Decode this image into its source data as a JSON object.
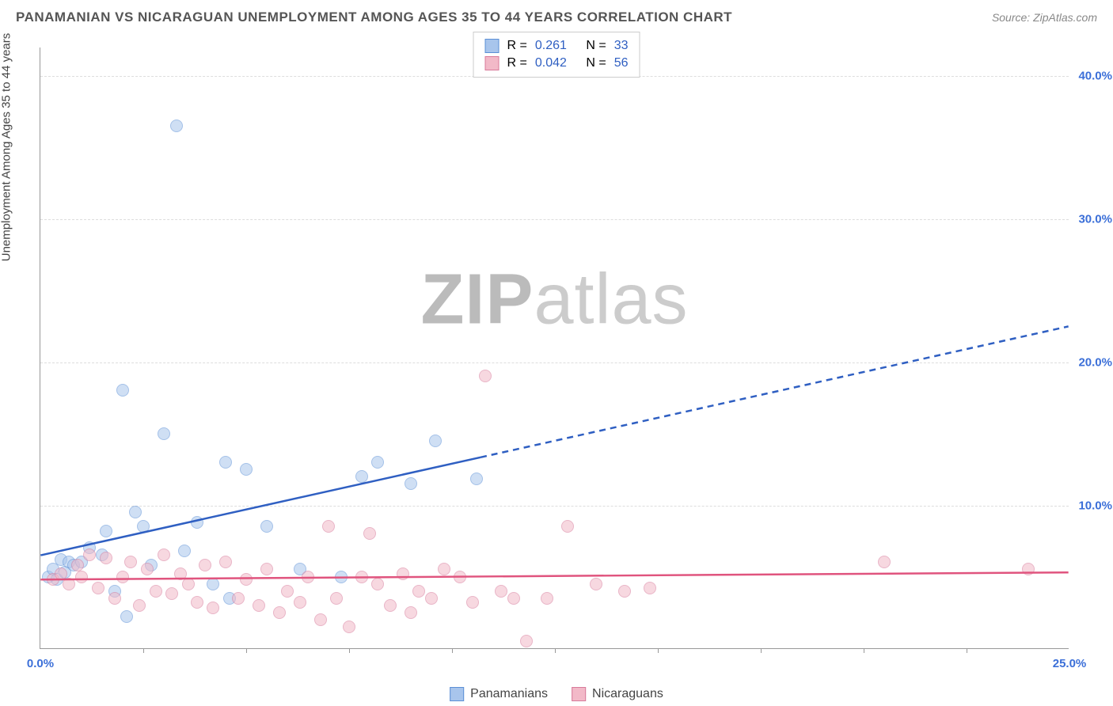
{
  "title": "PANAMANIAN VS NICARAGUAN UNEMPLOYMENT AMONG AGES 35 TO 44 YEARS CORRELATION CHART",
  "source": "Source: ZipAtlas.com",
  "yaxis_label": "Unemployment Among Ages 35 to 44 years",
  "watermark": {
    "bold": "ZIP",
    "light": "atlas"
  },
  "chart": {
    "type": "scatter",
    "xlim": [
      0,
      25
    ],
    "ylim": [
      0,
      42
    ],
    "yticks": [
      {
        "value": 10,
        "label": "10.0%"
      },
      {
        "value": 20,
        "label": "20.0%"
      },
      {
        "value": 30,
        "label": "30.0%"
      },
      {
        "value": 40,
        "label": "40.0%"
      }
    ],
    "xtick_marks": [
      2.5,
      5,
      7.5,
      10,
      12.5,
      15,
      17.5,
      20,
      22.5
    ],
    "xtick_labels": [
      {
        "value": 0,
        "label": "0.0%",
        "color": "#3b6fd8"
      },
      {
        "value": 25,
        "label": "25.0%",
        "color": "#3b6fd8"
      }
    ],
    "ytick_color": "#3b6fd8",
    "grid_color": "#dddddd",
    "background_color": "#ffffff",
    "marker_radius": 8,
    "marker_opacity": 0.55,
    "series": [
      {
        "name": "Panamanians",
        "fill": "#a8c5ec",
        "stroke": "#5b8fd6",
        "points": [
          [
            0.2,
            5.0
          ],
          [
            0.3,
            5.5
          ],
          [
            0.4,
            4.8
          ],
          [
            0.5,
            6.2
          ],
          [
            0.6,
            5.3
          ],
          [
            0.7,
            6.0
          ],
          [
            0.8,
            5.8
          ],
          [
            1.0,
            6.0
          ],
          [
            1.2,
            7.0
          ],
          [
            1.5,
            6.5
          ],
          [
            1.6,
            8.2
          ],
          [
            1.8,
            4.0
          ],
          [
            2.0,
            18.0
          ],
          [
            2.1,
            2.2
          ],
          [
            2.3,
            9.5
          ],
          [
            2.5,
            8.5
          ],
          [
            2.7,
            5.8
          ],
          [
            3.0,
            15.0
          ],
          [
            3.3,
            36.5
          ],
          [
            3.5,
            6.8
          ],
          [
            3.8,
            8.8
          ],
          [
            4.2,
            4.5
          ],
          [
            4.5,
            13.0
          ],
          [
            4.6,
            3.5
          ],
          [
            5.0,
            12.5
          ],
          [
            5.5,
            8.5
          ],
          [
            6.3,
            5.5
          ],
          [
            7.3,
            5.0
          ],
          [
            7.8,
            12.0
          ],
          [
            8.2,
            13.0
          ],
          [
            9.0,
            11.5
          ],
          [
            9.6,
            14.5
          ],
          [
            10.6,
            11.8
          ]
        ],
        "trend": {
          "color": "#2f5fc2",
          "width": 2.5,
          "y_at_x0": 6.5,
          "y_at_xmax": 22.5,
          "solid_until_x": 10.7
        },
        "R": "0.261",
        "N": "33"
      },
      {
        "name": "Nicaguans_display",
        "label": "Nicaraguans",
        "fill": "#f2b9c8",
        "stroke": "#d87a9a",
        "points": [
          [
            0.3,
            4.8
          ],
          [
            0.5,
            5.2
          ],
          [
            0.7,
            4.5
          ],
          [
            0.9,
            5.8
          ],
          [
            1.0,
            5.0
          ],
          [
            1.2,
            6.5
          ],
          [
            1.4,
            4.2
          ],
          [
            1.6,
            6.3
          ],
          [
            1.8,
            3.5
          ],
          [
            2.0,
            5.0
          ],
          [
            2.2,
            6.0
          ],
          [
            2.4,
            3.0
          ],
          [
            2.6,
            5.5
          ],
          [
            2.8,
            4.0
          ],
          [
            3.0,
            6.5
          ],
          [
            3.2,
            3.8
          ],
          [
            3.4,
            5.2
          ],
          [
            3.6,
            4.5
          ],
          [
            3.8,
            3.2
          ],
          [
            4.0,
            5.8
          ],
          [
            4.2,
            2.8
          ],
          [
            4.5,
            6.0
          ],
          [
            4.8,
            3.5
          ],
          [
            5.0,
            4.8
          ],
          [
            5.3,
            3.0
          ],
          [
            5.5,
            5.5
          ],
          [
            5.8,
            2.5
          ],
          [
            6.0,
            4.0
          ],
          [
            6.3,
            3.2
          ],
          [
            6.5,
            5.0
          ],
          [
            6.8,
            2.0
          ],
          [
            7.0,
            8.5
          ],
          [
            7.2,
            3.5
          ],
          [
            7.5,
            1.5
          ],
          [
            7.8,
            5.0
          ],
          [
            8.0,
            8.0
          ],
          [
            8.2,
            4.5
          ],
          [
            8.5,
            3.0
          ],
          [
            8.8,
            5.2
          ],
          [
            9.0,
            2.5
          ],
          [
            9.2,
            4.0
          ],
          [
            9.5,
            3.5
          ],
          [
            9.8,
            5.5
          ],
          [
            10.2,
            5.0
          ],
          [
            10.5,
            3.2
          ],
          [
            10.8,
            19.0
          ],
          [
            11.2,
            4.0
          ],
          [
            11.5,
            3.5
          ],
          [
            11.8,
            0.5
          ],
          [
            12.3,
            3.5
          ],
          [
            12.8,
            8.5
          ],
          [
            13.5,
            4.5
          ],
          [
            14.2,
            4.0
          ],
          [
            14.8,
            4.2
          ],
          [
            20.5,
            6.0
          ],
          [
            24.0,
            5.5
          ]
        ],
        "trend": {
          "color": "#e0547e",
          "width": 2.5,
          "y_at_x0": 4.8,
          "y_at_xmax": 5.3,
          "solid_until_x": 25
        },
        "R": "0.042",
        "N": "56"
      }
    ]
  },
  "legend_top": {
    "r_label": "R  =",
    "n_label": "N  =",
    "stat_color": "#2f5fc2"
  }
}
